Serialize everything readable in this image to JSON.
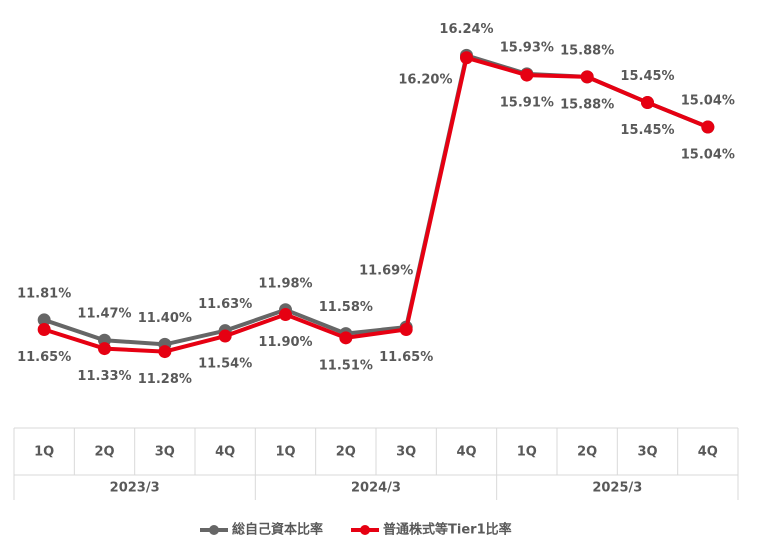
{
  "chart_data": {
    "type": "line",
    "categories": [
      "1Q",
      "2Q",
      "3Q",
      "4Q",
      "1Q",
      "2Q",
      "3Q",
      "4Q",
      "1Q",
      "2Q",
      "3Q",
      "4Q"
    ],
    "groups": [
      "2023/3",
      "2024/3",
      "2025/3"
    ],
    "series": [
      {
        "name": "総自己資本比率",
        "color": "#666666",
        "values": [
          11.81,
          11.47,
          11.4,
          11.63,
          11.98,
          11.58,
          11.69,
          16.24,
          15.93,
          15.88,
          15.45,
          15.04
        ],
        "value_labels": [
          "11.81%",
          "11.47%",
          "11.40%",
          "11.63%",
          "11.98%",
          "11.58%",
          "11.69%",
          "16.24%",
          "15.93%",
          "15.88%",
          "15.45%",
          "15.04%"
        ]
      },
      {
        "name": "普通株式等Tier1比率",
        "color": "#e60012",
        "values": [
          11.65,
          11.33,
          11.28,
          11.54,
          11.9,
          11.51,
          11.65,
          16.2,
          15.91,
          15.88,
          15.45,
          15.04
        ],
        "value_labels": [
          "11.65%",
          "11.33%",
          "11.28%",
          "11.54%",
          "11.90%",
          "11.51%",
          "11.65%",
          "16.20%",
          "15.91%",
          "15.88%",
          "15.45%",
          "15.04%"
        ]
      }
    ],
    "ylim": [
      10,
      17
    ],
    "legend": "bottom"
  }
}
